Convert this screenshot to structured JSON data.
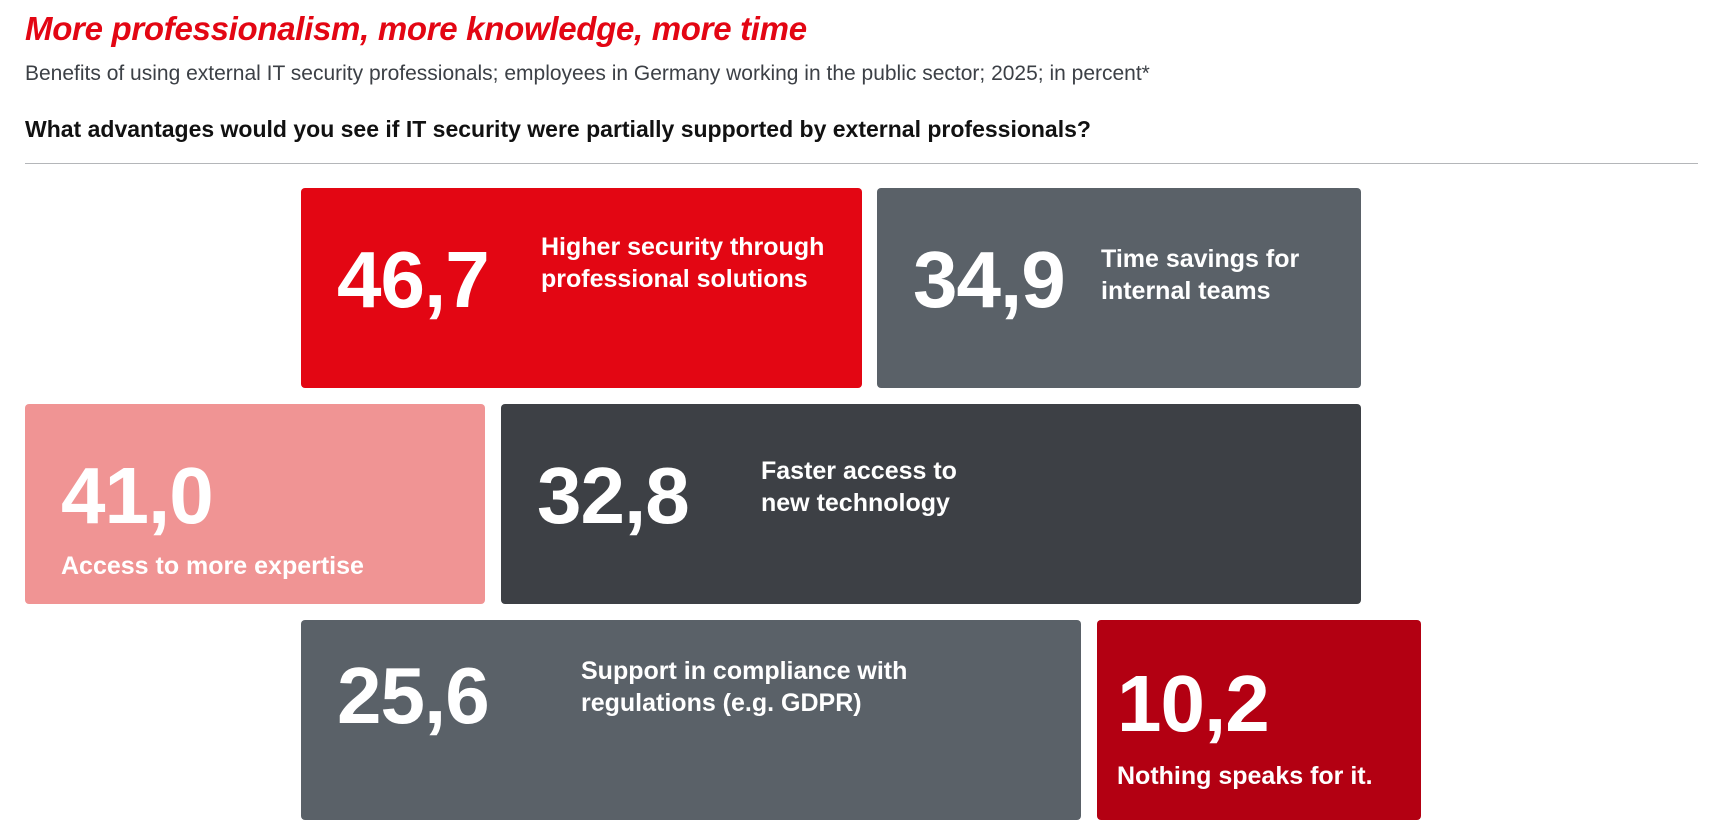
{
  "header": {
    "title": "More professionalism, more knowledge, more time",
    "subtitle": "Benefits of using external IT security professionals; employees in Germany working in the public sector; 2025; in percent*",
    "question": "What advantages would you see if IT security were partially supported by external professionals?"
  },
  "chart_data": {
    "type": "treemap",
    "unit": "percent",
    "decimal_separator": ",",
    "items": [
      {
        "value_label": "46,7",
        "value": 46.7,
        "label": "Higher security through\nprofessional solutions",
        "color": "#e30613"
      },
      {
        "value_label": "34,9",
        "value": 34.9,
        "label": "Time savings for\ninternal teams",
        "color": "#5a6168"
      },
      {
        "value_label": "41,0",
        "value": 41.0,
        "label": "Access to more expertise",
        "color": "#f09494"
      },
      {
        "value_label": "32,8",
        "value": 32.8,
        "label": "Faster access to\nnew technology",
        "color": "#3d4045"
      },
      {
        "value_label": "25,6",
        "value": 25.6,
        "label": "Support in compliance with\nregulations (e.g. GDPR)",
        "color": "#5a6168"
      },
      {
        "value_label": "10,2",
        "value": 10.2,
        "label": "Nothing speaks for it.",
        "color": "#b30012"
      }
    ]
  }
}
